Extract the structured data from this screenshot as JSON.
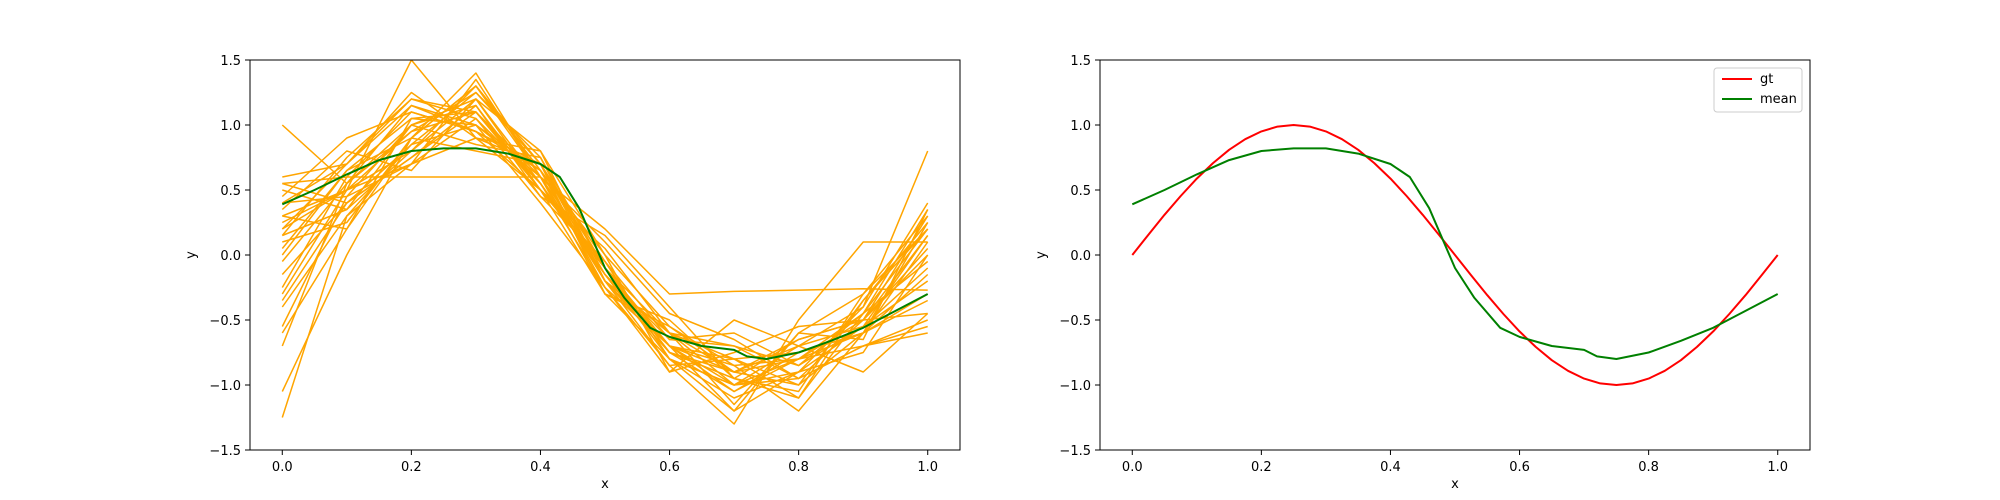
{
  "chart_data": [
    {
      "type": "line",
      "xlabel": "x",
      "ylabel": "y",
      "xlim": [
        -0.05,
        1.05
      ],
      "ylim": [
        -1.5,
        1.5
      ],
      "xticks": [
        "0.0",
        "0.2",
        "0.4",
        "0.6",
        "0.8",
        "1.0"
      ],
      "yticks": [
        "−1.5",
        "−1.0",
        "−0.5",
        "0.0",
        "0.5",
        "1.0",
        "1.5"
      ],
      "grid": false,
      "legend": null,
      "samples_color": "#ffa500",
      "mean_color": "#008000",
      "sample_count": 30,
      "x_samples": [
        0.0,
        0.1,
        0.2,
        0.3,
        0.4,
        0.5,
        0.6,
        0.7,
        0.8,
        0.9,
        1.0
      ],
      "samples": [
        [
          1.0,
          0.55,
          0.95,
          1.25,
          0.75,
          -0.1,
          -0.75,
          -0.9,
          -0.8,
          -0.5,
          0.3
        ],
        [
          0.4,
          0.7,
          1.2,
          1.1,
          0.6,
          -0.2,
          -0.6,
          -0.7,
          -0.95,
          -0.7,
          -0.5
        ],
        [
          -0.6,
          0.2,
          0.9,
          1.3,
          0.7,
          -0.15,
          -0.8,
          -1.2,
          -0.6,
          -0.3,
          0.2
        ],
        [
          0.2,
          0.5,
          1.5,
          0.9,
          0.5,
          -0.3,
          -0.55,
          -0.9,
          -1.0,
          -0.6,
          -0.3
        ],
        [
          -1.25,
          0.3,
          0.7,
          1.05,
          0.55,
          -0.25,
          -0.7,
          -1.0,
          -0.7,
          -0.4,
          0.8
        ],
        [
          0.55,
          0.6,
          0.6,
          0.6,
          0.6,
          0.2,
          -0.3,
          -0.28,
          -0.27,
          -0.26,
          -0.27
        ],
        [
          0.15,
          0.35,
          1.0,
          1.2,
          0.8,
          0.0,
          -0.9,
          -0.5,
          -0.7,
          -0.9,
          -0.45
        ],
        [
          -0.35,
          0.4,
          0.85,
          1.0,
          0.65,
          -0.2,
          -0.7,
          -0.8,
          -1.1,
          -0.45,
          0.35
        ],
        [
          0.45,
          0.9,
          1.1,
          0.95,
          0.5,
          -0.1,
          -0.6,
          -1.0,
          -0.8,
          -0.7,
          -0.6
        ],
        [
          0.3,
          0.5,
          0.7,
          1.35,
          0.6,
          -0.2,
          -0.85,
          -1.3,
          -0.5,
          0.1,
          0.1
        ],
        [
          -1.05,
          0.0,
          0.9,
          0.8,
          0.7,
          -0.1,
          -0.7,
          -0.85,
          -1.2,
          -0.6,
          0.25
        ],
        [
          0.05,
          0.65,
          1.05,
          1.1,
          0.55,
          -0.15,
          -0.65,
          -0.6,
          -0.85,
          -0.55,
          -0.1
        ],
        [
          -0.15,
          0.4,
          0.75,
          1.15,
          0.45,
          0.15,
          -0.4,
          -0.95,
          -0.65,
          -0.5,
          0.15
        ],
        [
          0.6,
          0.7,
          1.25,
          0.9,
          0.7,
          -0.05,
          -0.8,
          -1.1,
          -0.9,
          -0.75,
          0.0
        ],
        [
          0.1,
          0.25,
          0.9,
          1.4,
          0.6,
          -0.3,
          -0.5,
          -0.95,
          -1.05,
          -0.3,
          0.3
        ],
        [
          -0.55,
          0.45,
          1.0,
          0.85,
          0.75,
          -0.2,
          -0.75,
          -1.05,
          -0.75,
          -0.6,
          -0.15
        ],
        [
          0.35,
          0.8,
          0.65,
          1.2,
          0.5,
          0.05,
          -0.6,
          -0.8,
          -1.0,
          -0.35,
          0.2
        ],
        [
          -0.05,
          0.55,
          1.15,
          1.0,
          0.4,
          -0.25,
          -0.9,
          -0.75,
          -0.55,
          -0.5,
          -0.45
        ],
        [
          0.5,
          0.35,
          0.8,
          1.3,
          0.6,
          -0.1,
          -0.7,
          -1.2,
          -0.9,
          -0.4,
          0.4
        ],
        [
          -0.25,
          0.6,
          1.1,
          0.95,
          0.65,
          0.0,
          -0.55,
          -0.85,
          -0.8,
          -0.6,
          0.1
        ],
        [
          0.25,
          0.5,
          0.95,
          1.1,
          0.55,
          -0.15,
          -0.7,
          -0.9,
          -0.7,
          -0.55,
          -0.2
        ],
        [
          -0.4,
          0.3,
          0.85,
          1.25,
          0.7,
          -0.3,
          -0.8,
          -1.0,
          -0.95,
          -0.5,
          0.05
        ],
        [
          0.15,
          0.75,
          1.2,
          1.05,
          0.45,
          -0.05,
          -0.65,
          -0.7,
          -0.85,
          -0.45,
          -0.05
        ],
        [
          0.4,
          0.45,
          0.7,
          0.9,
          0.8,
          -0.2,
          -0.6,
          -1.15,
          -0.6,
          -0.65,
          0.35
        ],
        [
          -0.7,
          0.55,
          1.0,
          1.15,
          0.5,
          -0.1,
          -0.75,
          -0.95,
          -1.1,
          -0.35,
          0.25
        ],
        [
          0.0,
          0.65,
          0.9,
          1.3,
          0.65,
          -0.25,
          -0.85,
          -0.8,
          -0.75,
          -0.6,
          -0.35
        ],
        [
          0.3,
          0.2,
          1.05,
          1.0,
          0.6,
          0.1,
          -0.45,
          -0.65,
          -0.95,
          -0.7,
          -0.55
        ],
        [
          -0.3,
          0.5,
          0.8,
          1.2,
          0.55,
          -0.15,
          -0.7,
          -1.05,
          -0.8,
          -0.45,
          0.2
        ],
        [
          0.2,
          0.7,
          1.15,
          0.95,
          0.7,
          -0.2,
          -0.6,
          -0.9,
          -0.65,
          -0.5,
          0.0
        ],
        [
          0.55,
          0.4,
          0.75,
          1.1,
          0.5,
          -0.05,
          -0.8,
          -1.0,
          -0.9,
          -0.55,
          0.15
        ]
      ],
      "series": [
        {
          "x": [
            0.0,
            0.05,
            0.1,
            0.15,
            0.2,
            0.25,
            0.3,
            0.35,
            0.4,
            0.43,
            0.46,
            0.5,
            0.53,
            0.57,
            0.6,
            0.65,
            0.7,
            0.72,
            0.75,
            0.8,
            0.85,
            0.9,
            0.95,
            1.0
          ],
          "y": [
            0.39,
            0.5,
            0.62,
            0.73,
            0.8,
            0.82,
            0.82,
            0.78,
            0.7,
            0.6,
            0.36,
            -0.1,
            -0.33,
            -0.56,
            -0.63,
            -0.7,
            -0.73,
            -0.78,
            -0.8,
            -0.75,
            -0.66,
            -0.56,
            -0.43,
            -0.3
          ]
        }
      ]
    },
    {
      "type": "line",
      "xlabel": "x",
      "ylabel": "y",
      "xlim": [
        -0.05,
        1.05
      ],
      "ylim": [
        -1.5,
        1.5
      ],
      "xticks": [
        "0.0",
        "0.2",
        "0.4",
        "0.6",
        "0.8",
        "1.0"
      ],
      "yticks": [
        "−1.5",
        "−1.0",
        "−0.5",
        "0.0",
        "0.5",
        "1.0",
        "1.5"
      ],
      "grid": false,
      "legend": "top-right",
      "series": [
        {
          "name": "gt",
          "color": "#ff0000",
          "x": [
            0.0,
            0.025,
            0.05,
            0.075,
            0.1,
            0.125,
            0.15,
            0.175,
            0.2,
            0.225,
            0.25,
            0.275,
            0.3,
            0.325,
            0.35,
            0.375,
            0.4,
            0.425,
            0.45,
            0.475,
            0.5,
            0.525,
            0.55,
            0.575,
            0.6,
            0.625,
            0.65,
            0.675,
            0.7,
            0.725,
            0.75,
            0.775,
            0.8,
            0.825,
            0.85,
            0.875,
            0.9,
            0.925,
            0.95,
            0.975,
            1.0
          ],
          "y": [
            0.0,
            0.156,
            0.309,
            0.454,
            0.588,
            0.707,
            0.809,
            0.891,
            0.951,
            0.988,
            1.0,
            0.988,
            0.951,
            0.891,
            0.809,
            0.707,
            0.588,
            0.454,
            0.309,
            0.156,
            0.0,
            -0.156,
            -0.309,
            -0.454,
            -0.588,
            -0.707,
            -0.809,
            -0.891,
            -0.951,
            -0.988,
            -1.0,
            -0.988,
            -0.951,
            -0.891,
            -0.809,
            -0.707,
            -0.588,
            -0.454,
            -0.309,
            -0.156,
            0.0
          ]
        },
        {
          "name": "mean",
          "color": "#008000",
          "x": [
            0.0,
            0.05,
            0.1,
            0.15,
            0.2,
            0.25,
            0.3,
            0.35,
            0.4,
            0.43,
            0.46,
            0.5,
            0.53,
            0.57,
            0.6,
            0.65,
            0.7,
            0.72,
            0.75,
            0.8,
            0.85,
            0.9,
            0.95,
            1.0
          ],
          "y": [
            0.39,
            0.5,
            0.62,
            0.73,
            0.8,
            0.82,
            0.82,
            0.78,
            0.7,
            0.6,
            0.36,
            -0.1,
            -0.33,
            -0.56,
            -0.63,
            -0.7,
            -0.73,
            -0.78,
            -0.8,
            -0.75,
            -0.66,
            -0.56,
            -0.43,
            -0.3
          ]
        }
      ]
    }
  ]
}
